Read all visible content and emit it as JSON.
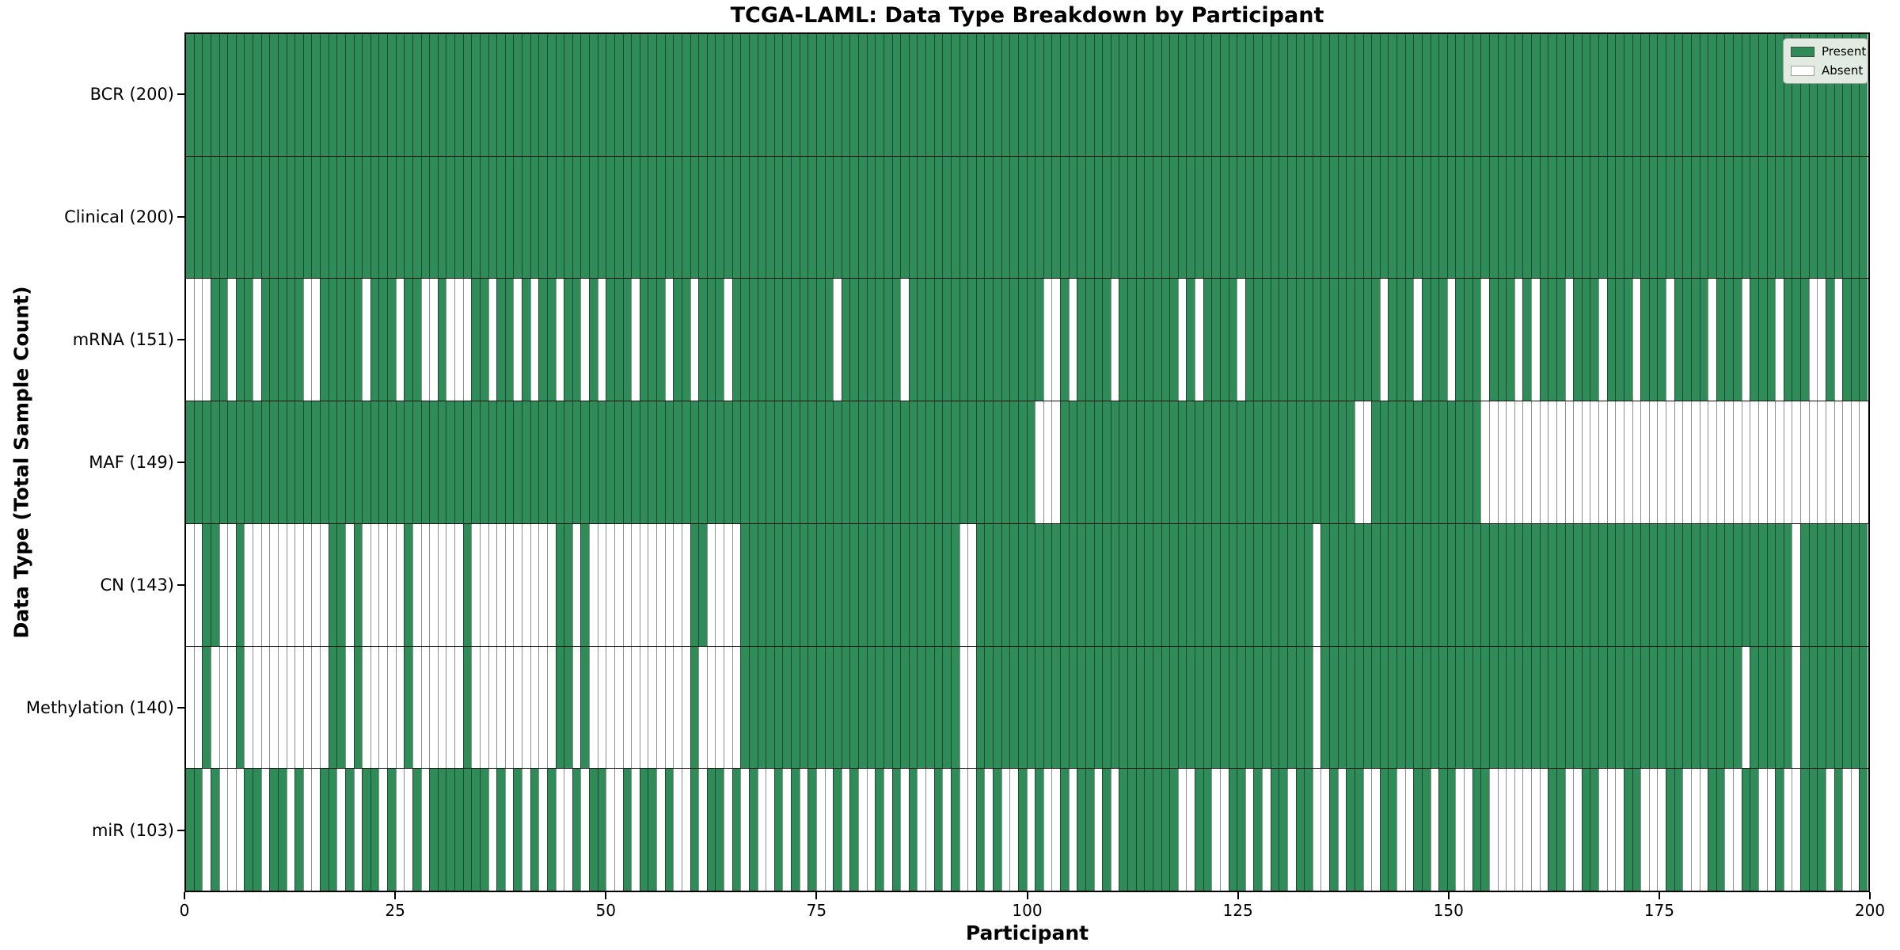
{
  "chart_data": {
    "type": "heatmap",
    "title": "TCGA-LAML: Data Type Breakdown by Participant",
    "xlabel": "Participant",
    "ylabel": "Data Type (Total Sample Count)",
    "x_range": [
      0,
      200
    ],
    "n_participants": 200,
    "x_ticks": [
      0,
      25,
      50,
      75,
      100,
      125,
      150,
      175,
      200
    ],
    "grid": false,
    "legend_position": "upper right",
    "legend": {
      "present": "Present",
      "absent": "Absent"
    },
    "colors": {
      "present": "#2f8b57",
      "absent": "#ffffff",
      "present_edge": "#1c4a30",
      "absent_edge": "#8f8f8f",
      "row_separator": "#141414",
      "legend_bg": "#e2ebe2"
    },
    "encoding": "run-length over participants 0-199; P<n>=n consecutive present (green), A<n>=n consecutive absent (white)",
    "rows": [
      {
        "name": "BCR",
        "label": "BCR (200)",
        "total_samples": 200,
        "rle": "P200"
      },
      {
        "name": "Clinical",
        "label": "Clinical (200)",
        "total_samples": 200,
        "rle": "P200"
      },
      {
        "name": "mRNA",
        "label": "mRNA (151)",
        "total_samples": 151,
        "rle": "A3P2A1P2A1P5A2P5A1P3A1P2A2P1A3P2A1P2A1P1A1P2A1P2A1P1A1P3A1P3A1P2A1P3A1P12A1P7A1P16A2P1A1P4A1P7A1P1A1P4A1P16A1P3A1P3A1P3A1P3A1P1A1P3A1P3A1P3A1P3A1P4A1P3A1P3A1P3A2P1A1P3"
      },
      {
        "name": "MAF",
        "label": "MAF (149)",
        "total_samples": 149,
        "rle": "P101A3P35A2P13A46"
      },
      {
        "name": "CN",
        "label": "CN (143)",
        "total_samples": 143,
        "rle": "A2P2A2P1A10P2A1P1A5P1A6P1A10P2A1P1A12P2A4P26A2P40A1P56A1P8"
      },
      {
        "name": "Methylation",
        "label": "Methylation (140)",
        "total_samples": 140,
        "rle": "A2P1A3P1A10P2A1P1A5P1A6P1A10P2A1P1A12P1A5P26A2P40A1P50A1P5A1P8"
      },
      {
        "name": "miR",
        "label": "miR (103)",
        "total_samples": 103,
        "rle": "P2A1P1A3P2A1P2A1P1A2P2A1P1A1P2A1P1A2P1A1P7A1P1A1P1A1P1A1P1A2P1A1P2A2P1A1P2A1P1A2P1A1P2A1P1A1P1A2P1A1P1A1P1A2P1A1P1A2P1A1P1A1P1A2P1A1P1A2P1A1P1A2P1A1P1A2P1A1P2A1P1A1P7A2P2A2P2A1P1A1P2A1P2A2P1A1P2A2P2A2P2A1P2A2P2A7P2A2P2A3P2A3P2A3P2A2P2A2P1A2P3A1P1A2P1"
      }
    ]
  }
}
